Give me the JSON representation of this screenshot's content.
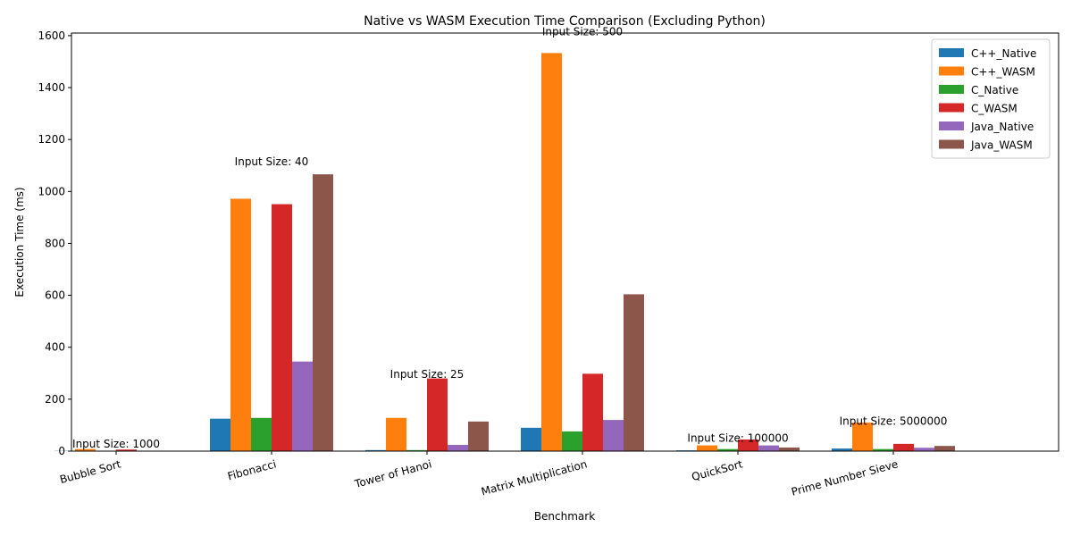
{
  "chart_data": {
    "type": "bar",
    "title": "Native vs WASM Execution Time Comparison (Excluding Python)",
    "xlabel": "Benchmark",
    "ylabel": "Execution Time (ms)",
    "ylim": [
      0,
      1610
    ],
    "yticks": [
      0,
      200,
      400,
      600,
      800,
      1000,
      1200,
      1400,
      1600
    ],
    "categories": [
      "Bubble Sort",
      "Fibonacci",
      "Tower of Hanoi",
      "Matrix Multiplication",
      "QuickSort",
      "Prime Number Sieve"
    ],
    "series": [
      {
        "name": "C++_Native",
        "color": "#1f77b4",
        "values": [
          1,
          125,
          4,
          90,
          3,
          10
        ]
      },
      {
        "name": "C++_WASM",
        "color": "#ff7f0e",
        "values": [
          8,
          972,
          128,
          1533,
          22,
          110
        ]
      },
      {
        "name": "C_Native",
        "color": "#2ca02c",
        "values": [
          1,
          128,
          4,
          76,
          8,
          8
        ]
      },
      {
        "name": "C_WASM",
        "color": "#d62728",
        "values": [
          6,
          951,
          280,
          298,
          45,
          28
        ]
      },
      {
        "name": "Java_Native",
        "color": "#9467bd",
        "values": [
          1,
          345,
          24,
          120,
          22,
          13
        ]
      },
      {
        "name": "Java_WASM",
        "color": "#8c564b",
        "values": [
          1,
          1066,
          114,
          604,
          14,
          20
        ]
      }
    ],
    "annotations": [
      {
        "category_index": 0,
        "text": "Input Size: 1000",
        "y": 28
      },
      {
        "category_index": 1,
        "text": "Input Size: 40",
        "y": 1115
      },
      {
        "category_index": 2,
        "text": "Input Size: 25",
        "y": 295
      },
      {
        "category_index": 3,
        "text": "Input Size: 500",
        "y": 1615
      },
      {
        "category_index": 4,
        "text": "Input Size: 100000",
        "y": 50
      },
      {
        "category_index": 5,
        "text": "Input Size: 5000000",
        "y": 115
      }
    ],
    "grid": false,
    "legend": "top-right"
  }
}
